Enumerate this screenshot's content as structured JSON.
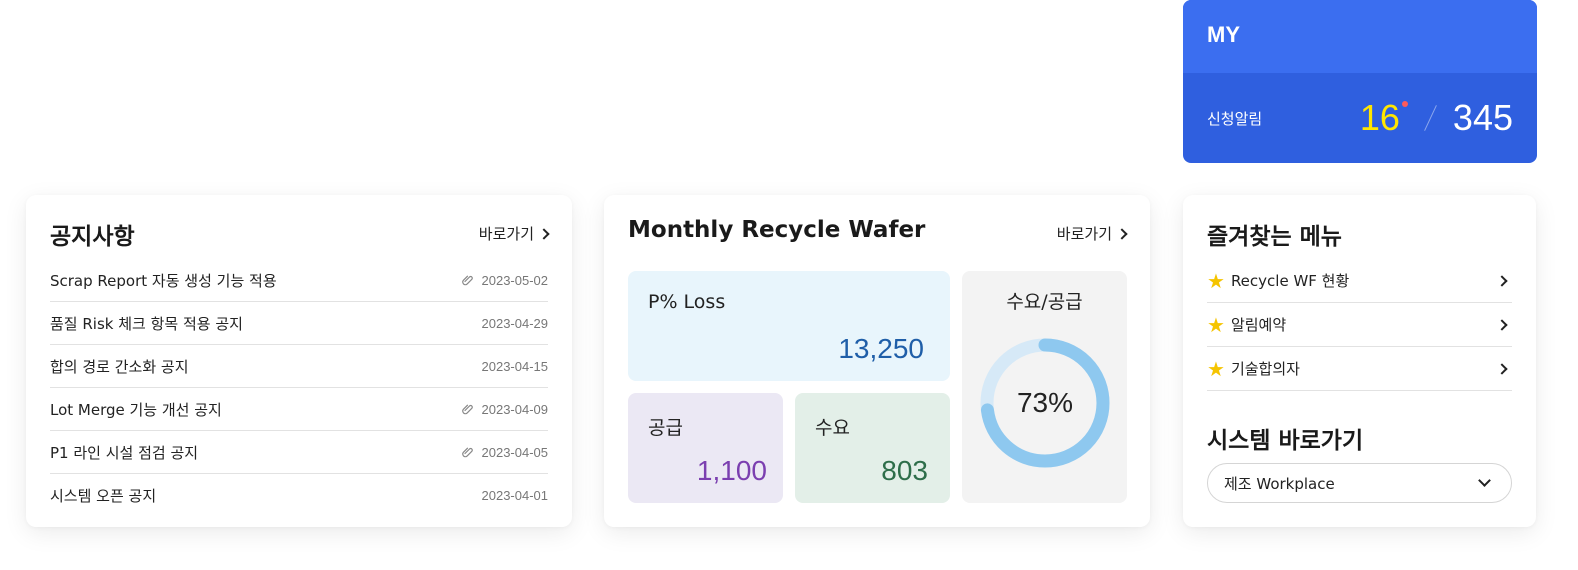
{
  "my": {
    "title": "MY",
    "label": "신청알림",
    "new_count": "16",
    "total_count": "345"
  },
  "notice": {
    "title": "공지사항",
    "goto_label": "바로가기",
    "items": [
      {
        "title": "Scrap Report 자동 생성 기능 적용",
        "date": "2023-05-02",
        "attachment": true
      },
      {
        "title": "품질 Risk 체크 항목 적용 공지",
        "date": "2023-04-29",
        "attachment": false
      },
      {
        "title": "합의 경로 간소화 공지",
        "date": "2023-04-15",
        "attachment": false
      },
      {
        "title": "Lot Merge 기능 개선 공지",
        "date": "2023-04-09",
        "attachment": true
      },
      {
        "title": "P1 라인 시설 점검 공지",
        "date": "2023-04-05",
        "attachment": true
      },
      {
        "title": "시스템 오픈 공지",
        "date": "2023-04-01",
        "attachment": false
      }
    ]
  },
  "recycle": {
    "title": "Monthly Recycle Wafer",
    "goto_label": "바로가기",
    "loss_label": "P% Loss",
    "loss_value": "13,250",
    "supply_label": "공급",
    "supply_value": "1,100",
    "demand_label": "수요",
    "demand_value": "803",
    "ratio_label": "수요/공급",
    "ratio_text": "73%",
    "ratio_value": 0.73
  },
  "favorites": {
    "title": "즐겨찾는 메뉴",
    "items": [
      {
        "label": "Recycle WF 현황"
      },
      {
        "label": "알림예약"
      },
      {
        "label": "기술합의자"
      }
    ]
  },
  "system": {
    "title": "시스템 바로가기",
    "selected": "제조 Workplace"
  },
  "colors": {
    "my_head": "#3b6ef0",
    "my_body": "#2f5fdf",
    "new_count": "#ffe600",
    "donut_track": "#d6e9f7",
    "donut_fill": "#8ec8ef",
    "star": "#f5c400"
  }
}
